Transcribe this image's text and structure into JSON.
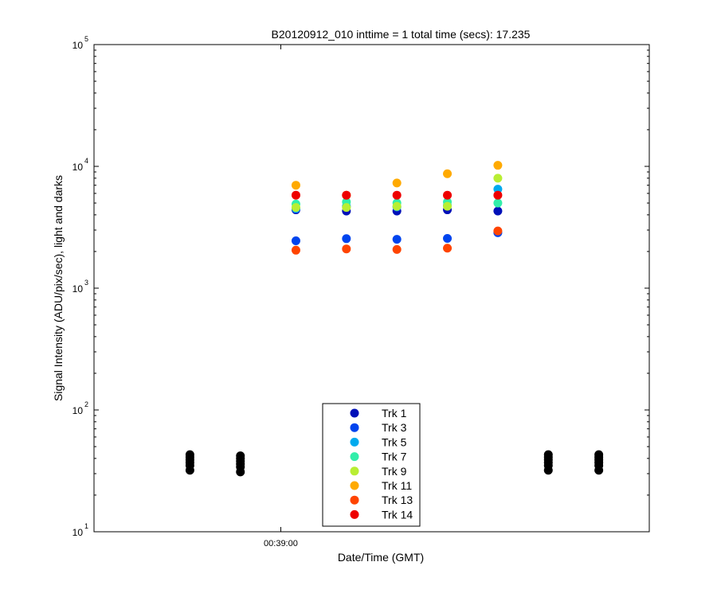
{
  "chart_data": {
    "type": "scatter",
    "title": "B20120912_010 inttime = 1 total time (secs): 17.235",
    "xlabel": "Date/Time (GMT)",
    "ylabel": "Signal Intensity (ADU/pix/sec), light and darks",
    "y_scale": "log",
    "ylim": [
      10,
      100000
    ],
    "y_ticks": [
      {
        "base": "10",
        "exp": "1",
        "value": 10
      },
      {
        "base": "10",
        "exp": "2",
        "value": 100
      },
      {
        "base": "10",
        "exp": "3",
        "value": 1000
      },
      {
        "base": "10",
        "exp": "4",
        "value": 10000
      },
      {
        "base": "10",
        "exp": "5",
        "value": 100000
      }
    ],
    "x_ticks": [
      "00:39:00"
    ],
    "grid": false,
    "legend_position": "bottom-center",
    "light_times": [
      "00:39:03",
      "00:39:13",
      "00:39:23",
      "00:39:33",
      "00:39:43"
    ],
    "dark_times": [
      "00:38:42",
      "00:38:52",
      "00:39:53",
      "00:40:03"
    ],
    "series": [
      {
        "name": "Trk 1",
        "color": "#0010b8",
        "values": [
          4400,
          4300,
          4300,
          4400,
          4300
        ]
      },
      {
        "name": "Trk 3",
        "color": "#0044ee",
        "values": [
          2450,
          2550,
          2520,
          2560,
          2850
        ]
      },
      {
        "name": "Trk 5",
        "color": "#00aaee",
        "values": [
          4500,
          4700,
          4650,
          4800,
          6500
        ]
      },
      {
        "name": "Trk 7",
        "color": "#33eeaa",
        "values": [
          4900,
          5100,
          5000,
          5100,
          5000
        ]
      },
      {
        "name": "Trk 9",
        "color": "#b8ee33",
        "values": [
          4600,
          4600,
          4700,
          4700,
          8000
        ]
      },
      {
        "name": "Trk 11",
        "color": "#ffaa00",
        "values": [
          7000,
          5800,
          7300,
          8700,
          10200
        ]
      },
      {
        "name": "Trk 13",
        "color": "#ff4400",
        "values": [
          2050,
          2100,
          2080,
          2130,
          2950
        ]
      },
      {
        "name": "Trk 14",
        "color": "#ee0000",
        "values": [
          5800,
          5800,
          5800,
          5800,
          5800
        ]
      }
    ],
    "darks": {
      "color": "#000000",
      "values": [
        [
          32,
          35,
          37,
          39,
          41,
          43
        ],
        [
          31,
          34,
          36,
          38,
          40,
          42
        ],
        [
          32,
          35,
          37,
          39,
          41,
          43
        ],
        [
          32,
          35,
          37,
          39,
          41,
          43
        ]
      ]
    }
  }
}
